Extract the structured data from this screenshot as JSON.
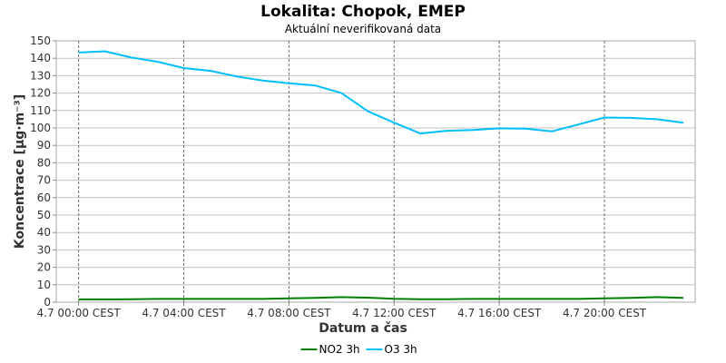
{
  "chart_data": {
    "type": "line",
    "title": "Lokalita: Chopok, EMEP",
    "subtitle": "Aktuální neverifikovaná data",
    "xlabel": "Datum a čas",
    "ylabel": "Koncentrace [µg·m⁻³]",
    "ylim": [
      0,
      150
    ],
    "yticks": [
      0,
      10,
      20,
      30,
      40,
      50,
      60,
      70,
      80,
      90,
      100,
      110,
      120,
      130,
      140,
      150
    ],
    "xlim": [
      -0.85,
      23.45
    ],
    "xticks": [
      {
        "hour": 0,
        "label": "4.7 00:00 CEST"
      },
      {
        "hour": 4,
        "label": "4.7 04:00 CEST"
      },
      {
        "hour": 8,
        "label": "4.7 08:00 CEST"
      },
      {
        "hour": 12,
        "label": "4.7 12:00 CEST"
      },
      {
        "hour": 16,
        "label": "4.7 16:00 CEST"
      },
      {
        "hour": 20,
        "label": "4.7 20:00 CEST"
      }
    ],
    "grid": true,
    "legend_position": "bottom",
    "series": [
      {
        "name": "NO2 3h",
        "color": "#008000",
        "x": [
          0,
          1,
          2,
          3,
          4,
          5,
          6,
          7,
          8,
          9,
          10,
          11,
          12,
          13,
          14,
          15,
          16,
          17,
          18,
          19,
          20,
          21,
          22,
          23
        ],
        "y": [
          1.6,
          1.6,
          1.7,
          1.9,
          1.9,
          1.9,
          1.9,
          1.9,
          2.2,
          2.5,
          2.9,
          2.6,
          2.0,
          1.7,
          1.7,
          1.9,
          1.9,
          1.9,
          1.9,
          1.9,
          2.2,
          2.5,
          2.9,
          2.5
        ]
      },
      {
        "name": "O3 3h",
        "color": "#00bfff",
        "x": [
          0,
          1,
          2,
          3,
          4,
          5,
          6,
          7,
          8,
          9,
          10,
          11,
          12,
          13,
          14,
          15,
          16,
          17,
          18,
          19,
          20,
          21,
          22,
          23
        ],
        "y": [
          143.3,
          144.0,
          140.4,
          138.0,
          134.4,
          132.8,
          129.6,
          127.2,
          125.6,
          124.4,
          120.0,
          109.6,
          103.0,
          96.8,
          98.4,
          98.8,
          99.8,
          99.6,
          98.0,
          102.0,
          106.0,
          105.8,
          105.0,
          103.0
        ]
      }
    ]
  }
}
